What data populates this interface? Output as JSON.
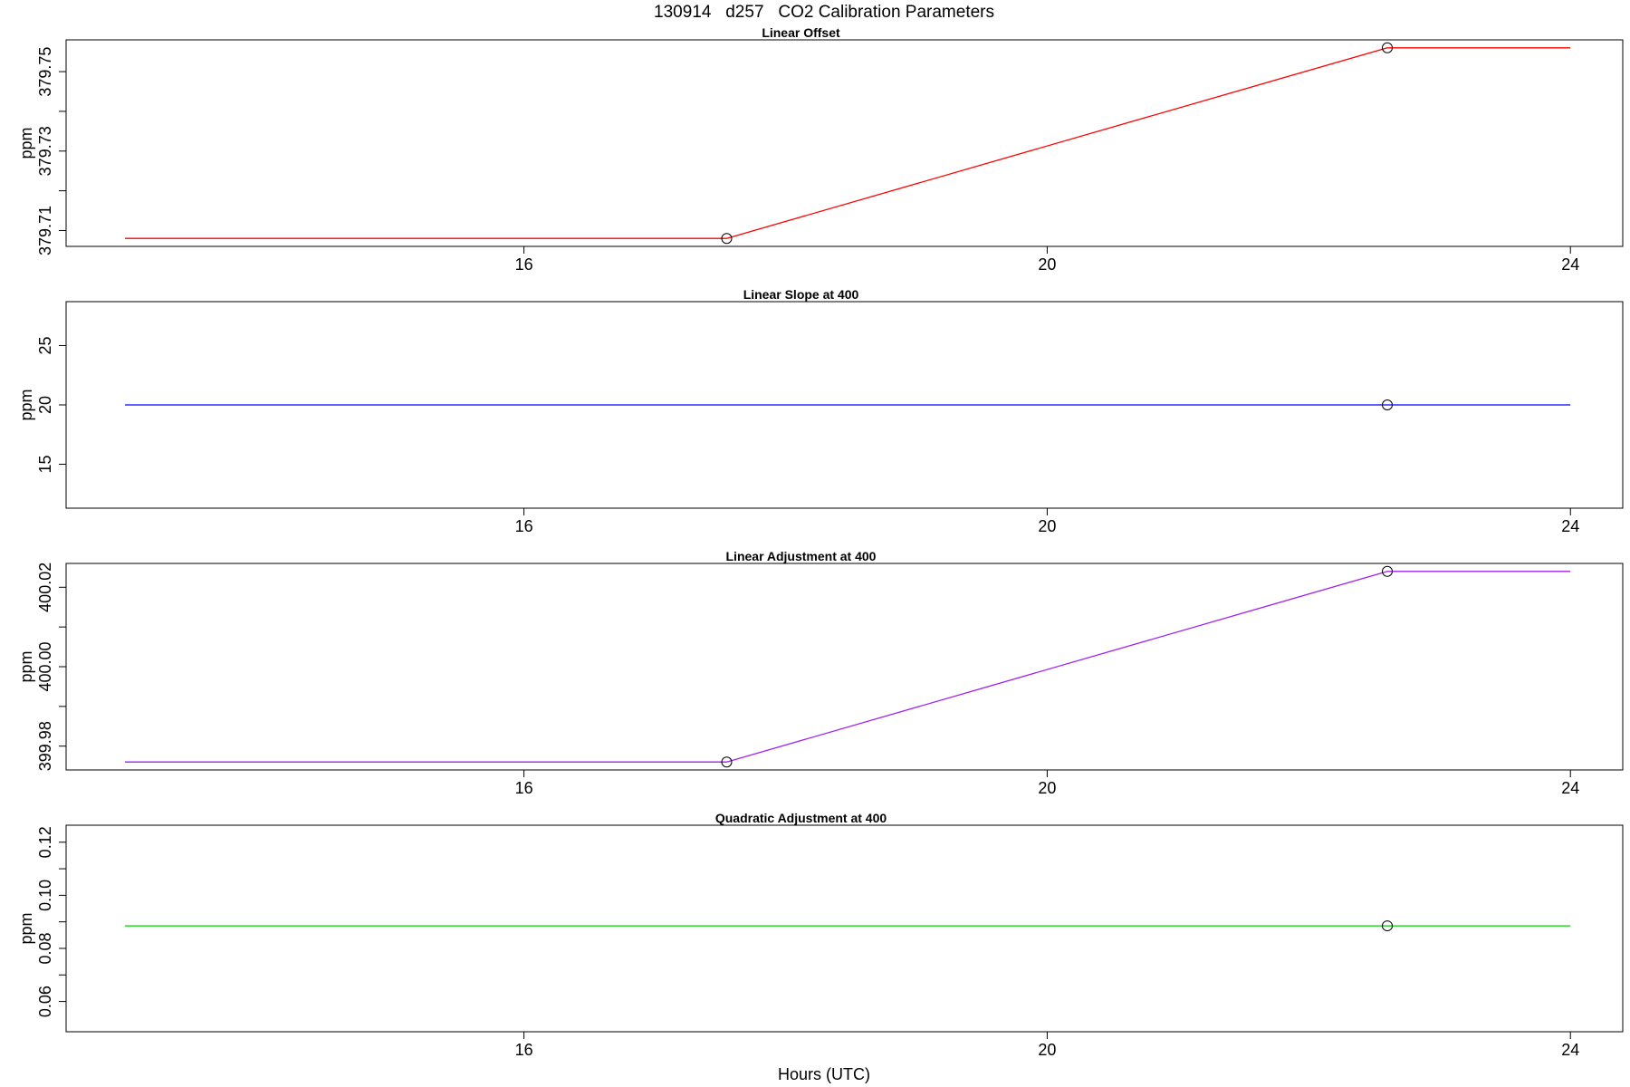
{
  "figure": {
    "title": "130914   d257   CO2 Calibration Parameters",
    "xlabel": "Hours (UTC)"
  },
  "chart_data": [
    {
      "type": "line",
      "title": "Linear Offset",
      "xlabel": "",
      "ylabel": "ppm",
      "xlim": [
        12.5,
        24.4
      ],
      "ylim": [
        379.706,
        379.758
      ],
      "xticks": [
        16,
        20,
        24
      ],
      "xtick_labels": [
        "16",
        "20",
        "24"
      ],
      "yticks": [
        379.71,
        379.72,
        379.73,
        379.74,
        379.75
      ],
      "ytick_labels": [
        "379.71",
        "",
        "379.73",
        "",
        "379.75"
      ],
      "line_color": "#ff0000",
      "x": [
        12.95,
        17.55,
        22.6,
        24.0
      ],
      "y": [
        379.708,
        379.708,
        379.756,
        379.756
      ],
      "markers": [
        {
          "x": 17.55,
          "y": 379.708
        },
        {
          "x": 22.6,
          "y": 379.756
        }
      ]
    },
    {
      "type": "line",
      "title": "Linear Slope at 400",
      "xlabel": "",
      "ylabel": "ppm",
      "xlim": [
        12.5,
        24.4
      ],
      "ylim": [
        11.3,
        28.7
      ],
      "xticks": [
        16,
        20,
        24
      ],
      "xtick_labels": [
        "16",
        "20",
        "24"
      ],
      "yticks": [
        15,
        20,
        25
      ],
      "ytick_labels": [
        "15",
        "20",
        "25"
      ],
      "line_color": "#0000ff",
      "x": [
        12.95,
        24.0
      ],
      "y": [
        20.0,
        20.0
      ],
      "markers": [
        {
          "x": 22.6,
          "y": 20.0
        }
      ]
    },
    {
      "type": "line",
      "title": "Linear Adjustment at 400",
      "xlabel": "",
      "ylabel": "ppm",
      "xlim": [
        12.5,
        24.4
      ],
      "ylim": [
        399.974,
        400.026
      ],
      "xticks": [
        16,
        20,
        24
      ],
      "xtick_labels": [
        "16",
        "20",
        "24"
      ],
      "yticks": [
        399.98,
        399.99,
        400.0,
        400.01,
        400.02
      ],
      "ytick_labels": [
        "399.98",
        "",
        "400.00",
        "",
        "400.02"
      ],
      "line_color": "#a020f0",
      "x": [
        12.95,
        17.55,
        22.6,
        24.0
      ],
      "y": [
        399.976,
        399.976,
        400.024,
        400.024
      ],
      "markers": [
        {
          "x": 17.55,
          "y": 399.976
        },
        {
          "x": 22.6,
          "y": 400.024
        }
      ]
    },
    {
      "type": "line",
      "title": "Quadratic Adjustment at 400",
      "xlabel": "",
      "ylabel": "ppm",
      "xlim": [
        12.5,
        24.4
      ],
      "ylim": [
        0.0486,
        0.1264
      ],
      "xticks": [
        16,
        20,
        24
      ],
      "xtick_labels": [
        "16",
        "20",
        "24"
      ],
      "yticks": [
        0.06,
        0.07,
        0.08,
        0.09,
        0.1,
        0.11,
        0.12
      ],
      "ytick_labels": [
        "0.06",
        "",
        "0.08",
        "",
        "0.10",
        "",
        "0.12"
      ],
      "line_color": "#00cd00",
      "x": [
        12.95,
        24.0
      ],
      "y": [
        0.0885,
        0.0885
      ],
      "markers": [
        {
          "x": 22.6,
          "y": 0.0885
        }
      ]
    }
  ]
}
